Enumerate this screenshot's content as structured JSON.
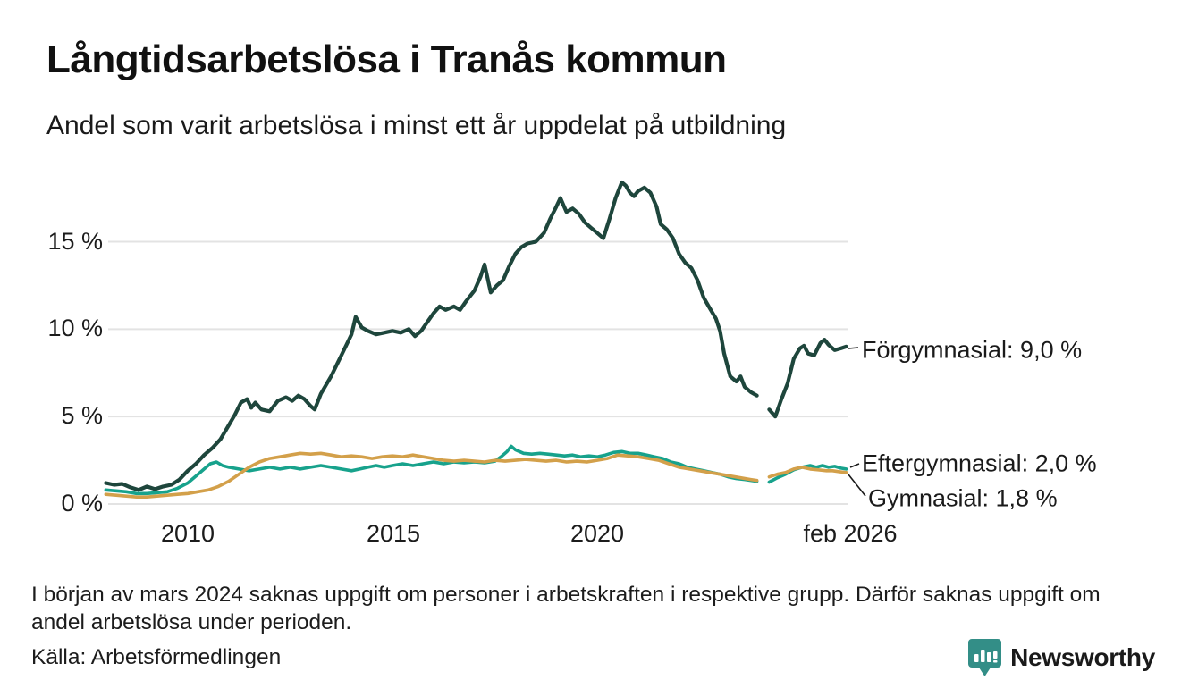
{
  "header": {
    "title": "Långtidsarbetslösa i Tranås kommun",
    "subtitle": "Andel som varit arbetslösa i minst ett år uppdelat på utbildning"
  },
  "chart_data": {
    "type": "line",
    "title": "Långtidsarbetslösa i Tranås kommun",
    "xlabel": "",
    "ylabel": "",
    "x_range": [
      2008.0,
      2026.08
    ],
    "ylim": [
      0,
      18.5
    ],
    "grid": "horizontal",
    "legend_position": "end-of-line-labels",
    "gridline_color": "#e3e3e3",
    "yticks": [
      {
        "label": "0 %",
        "value": 0
      },
      {
        "label": "5 %",
        "value": 5
      },
      {
        "label": "10 %",
        "value": 10
      },
      {
        "label": "15 %",
        "value": 15
      }
    ],
    "xticks": [
      {
        "label": "2010",
        "x": 2010
      },
      {
        "label": "2015",
        "x": 2015
      },
      {
        "label": "2020",
        "x": 2020
      },
      {
        "label": "feb 2026",
        "x": 2026.08
      }
    ],
    "data_gap": "mars 2024",
    "series": [
      {
        "name": "Förgymnasial",
        "color": "#1e463c",
        "line_width": 4.2,
        "end_label": "Förgymnasial: 9,0 %",
        "end_value_pct": 9.0,
        "points": [
          [
            2008.0,
            1.2
          ],
          [
            2008.2,
            1.1
          ],
          [
            2008.4,
            1.15
          ],
          [
            2008.6,
            0.95
          ],
          [
            2008.8,
            0.8
          ],
          [
            2009.0,
            1.0
          ],
          [
            2009.2,
            0.85
          ],
          [
            2009.4,
            1.0
          ],
          [
            2009.6,
            1.1
          ],
          [
            2009.8,
            1.4
          ],
          [
            2010.0,
            1.9
          ],
          [
            2010.2,
            2.3
          ],
          [
            2010.4,
            2.8
          ],
          [
            2010.6,
            3.2
          ],
          [
            2010.8,
            3.7
          ],
          [
            2011.0,
            4.5
          ],
          [
            2011.15,
            5.1
          ],
          [
            2011.3,
            5.8
          ],
          [
            2011.45,
            6.0
          ],
          [
            2011.55,
            5.5
          ],
          [
            2011.65,
            5.8
          ],
          [
            2011.8,
            5.4
          ],
          [
            2012.0,
            5.3
          ],
          [
            2012.2,
            5.9
          ],
          [
            2012.4,
            6.1
          ],
          [
            2012.55,
            5.9
          ],
          [
            2012.7,
            6.2
          ],
          [
            2012.85,
            6.0
          ],
          [
            2013.0,
            5.6
          ],
          [
            2013.1,
            5.4
          ],
          [
            2013.25,
            6.3
          ],
          [
            2013.5,
            7.3
          ],
          [
            2013.75,
            8.5
          ],
          [
            2014.0,
            9.7
          ],
          [
            2014.1,
            10.7
          ],
          [
            2014.25,
            10.1
          ],
          [
            2014.4,
            9.9
          ],
          [
            2014.6,
            9.7
          ],
          [
            2014.8,
            9.8
          ],
          [
            2015.0,
            9.9
          ],
          [
            2015.2,
            9.8
          ],
          [
            2015.4,
            10.0
          ],
          [
            2015.55,
            9.6
          ],
          [
            2015.7,
            9.9
          ],
          [
            2015.85,
            10.4
          ],
          [
            2016.0,
            10.9
          ],
          [
            2016.15,
            11.3
          ],
          [
            2016.3,
            11.1
          ],
          [
            2016.5,
            11.3
          ],
          [
            2016.65,
            11.1
          ],
          [
            2016.8,
            11.6
          ],
          [
            2017.0,
            12.2
          ],
          [
            2017.15,
            13.0
          ],
          [
            2017.25,
            13.7
          ],
          [
            2017.4,
            12.1
          ],
          [
            2017.55,
            12.5
          ],
          [
            2017.7,
            12.8
          ],
          [
            2017.85,
            13.6
          ],
          [
            2018.0,
            14.3
          ],
          [
            2018.15,
            14.7
          ],
          [
            2018.3,
            14.9
          ],
          [
            2018.5,
            15.0
          ],
          [
            2018.7,
            15.5
          ],
          [
            2018.85,
            16.3
          ],
          [
            2019.0,
            17.0
          ],
          [
            2019.1,
            17.5
          ],
          [
            2019.25,
            16.7
          ],
          [
            2019.4,
            16.9
          ],
          [
            2019.55,
            16.6
          ],
          [
            2019.7,
            16.1
          ],
          [
            2019.85,
            15.8
          ],
          [
            2020.0,
            15.5
          ],
          [
            2020.15,
            15.2
          ],
          [
            2020.3,
            16.3
          ],
          [
            2020.45,
            17.5
          ],
          [
            2020.6,
            18.4
          ],
          [
            2020.7,
            18.2
          ],
          [
            2020.8,
            17.8
          ],
          [
            2020.9,
            17.6
          ],
          [
            2021.0,
            17.9
          ],
          [
            2021.15,
            18.1
          ],
          [
            2021.3,
            17.8
          ],
          [
            2021.45,
            17.0
          ],
          [
            2021.55,
            16.0
          ],
          [
            2021.7,
            15.7
          ],
          [
            2021.85,
            15.2
          ],
          [
            2022.0,
            14.3
          ],
          [
            2022.15,
            13.8
          ],
          [
            2022.3,
            13.5
          ],
          [
            2022.45,
            12.8
          ],
          [
            2022.6,
            11.8
          ],
          [
            2022.75,
            11.2
          ],
          [
            2022.9,
            10.6
          ],
          [
            2023.0,
            9.9
          ],
          [
            2023.1,
            8.6
          ],
          [
            2023.25,
            7.3
          ],
          [
            2023.4,
            7.0
          ],
          [
            2023.5,
            7.3
          ],
          [
            2023.6,
            6.7
          ],
          [
            2023.75,
            6.4
          ],
          [
            2023.9,
            6.2
          ],
          [
            2024.05,
            null
          ],
          [
            2024.2,
            5.4
          ],
          [
            2024.35,
            5.0
          ],
          [
            2024.5,
            6.0
          ],
          [
            2024.65,
            6.9
          ],
          [
            2024.8,
            8.3
          ],
          [
            2024.95,
            8.9
          ],
          [
            2025.05,
            9.05
          ],
          [
            2025.15,
            8.6
          ],
          [
            2025.3,
            8.5
          ],
          [
            2025.45,
            9.2
          ],
          [
            2025.55,
            9.4
          ],
          [
            2025.65,
            9.1
          ],
          [
            2025.8,
            8.8
          ],
          [
            2025.95,
            8.9
          ],
          [
            2026.08,
            9.0
          ]
        ]
      },
      {
        "name": "Eftergymnasial",
        "color": "#17a28c",
        "line_width": 3.6,
        "end_label": "Eftergymnasial: 2,0 %",
        "end_value_pct": 2.0,
        "points": [
          [
            2008.0,
            0.8
          ],
          [
            2008.25,
            0.75
          ],
          [
            2008.5,
            0.7
          ],
          [
            2008.75,
            0.6
          ],
          [
            2009.0,
            0.6
          ],
          [
            2009.25,
            0.65
          ],
          [
            2009.5,
            0.7
          ],
          [
            2009.75,
            0.9
          ],
          [
            2010.0,
            1.2
          ],
          [
            2010.2,
            1.6
          ],
          [
            2010.4,
            2.0
          ],
          [
            2010.55,
            2.3
          ],
          [
            2010.7,
            2.4
          ],
          [
            2010.85,
            2.2
          ],
          [
            2011.0,
            2.1
          ],
          [
            2011.25,
            2.0
          ],
          [
            2011.5,
            1.9
          ],
          [
            2011.75,
            2.0
          ],
          [
            2012.0,
            2.1
          ],
          [
            2012.25,
            2.0
          ],
          [
            2012.5,
            2.1
          ],
          [
            2012.75,
            2.0
          ],
          [
            2013.0,
            2.1
          ],
          [
            2013.25,
            2.2
          ],
          [
            2013.5,
            2.1
          ],
          [
            2013.75,
            2.0
          ],
          [
            2014.0,
            1.9
          ],
          [
            2014.2,
            2.0
          ],
          [
            2014.4,
            2.1
          ],
          [
            2014.6,
            2.2
          ],
          [
            2014.8,
            2.1
          ],
          [
            2015.0,
            2.2
          ],
          [
            2015.25,
            2.3
          ],
          [
            2015.5,
            2.2
          ],
          [
            2015.75,
            2.3
          ],
          [
            2016.0,
            2.4
          ],
          [
            2016.25,
            2.3
          ],
          [
            2016.5,
            2.4
          ],
          [
            2016.75,
            2.35
          ],
          [
            2017.0,
            2.4
          ],
          [
            2017.25,
            2.35
          ],
          [
            2017.5,
            2.45
          ],
          [
            2017.65,
            2.7
          ],
          [
            2017.8,
            3.0
          ],
          [
            2017.9,
            3.3
          ],
          [
            2018.0,
            3.1
          ],
          [
            2018.2,
            2.9
          ],
          [
            2018.4,
            2.85
          ],
          [
            2018.6,
            2.9
          ],
          [
            2018.8,
            2.85
          ],
          [
            2019.0,
            2.8
          ],
          [
            2019.2,
            2.75
          ],
          [
            2019.4,
            2.8
          ],
          [
            2019.6,
            2.7
          ],
          [
            2019.8,
            2.75
          ],
          [
            2020.0,
            2.7
          ],
          [
            2020.2,
            2.8
          ],
          [
            2020.4,
            2.95
          ],
          [
            2020.6,
            3.0
          ],
          [
            2020.8,
            2.9
          ],
          [
            2021.0,
            2.9
          ],
          [
            2021.2,
            2.8
          ],
          [
            2021.4,
            2.7
          ],
          [
            2021.6,
            2.6
          ],
          [
            2021.8,
            2.4
          ],
          [
            2022.0,
            2.3
          ],
          [
            2022.2,
            2.1
          ],
          [
            2022.4,
            2.0
          ],
          [
            2022.6,
            1.9
          ],
          [
            2022.8,
            1.8
          ],
          [
            2023.0,
            1.7
          ],
          [
            2023.2,
            1.55
          ],
          [
            2023.4,
            1.45
          ],
          [
            2023.6,
            1.4
          ],
          [
            2023.75,
            1.35
          ],
          [
            2023.9,
            1.3
          ],
          [
            2024.05,
            null
          ],
          [
            2024.2,
            1.25
          ],
          [
            2024.4,
            1.5
          ],
          [
            2024.6,
            1.7
          ],
          [
            2024.8,
            1.95
          ],
          [
            2025.0,
            2.1
          ],
          [
            2025.2,
            2.2
          ],
          [
            2025.35,
            2.1
          ],
          [
            2025.5,
            2.2
          ],
          [
            2025.65,
            2.1
          ],
          [
            2025.8,
            2.15
          ],
          [
            2025.95,
            2.05
          ],
          [
            2026.08,
            2.0
          ]
        ]
      },
      {
        "name": "Gymnasial",
        "color": "#d3a04a",
        "line_width": 3.6,
        "end_label": "Gymnasial: 1,8 %",
        "end_value_pct": 1.8,
        "points": [
          [
            2008.0,
            0.55
          ],
          [
            2008.25,
            0.5
          ],
          [
            2008.5,
            0.45
          ],
          [
            2008.75,
            0.4
          ],
          [
            2009.0,
            0.4
          ],
          [
            2009.25,
            0.45
          ],
          [
            2009.5,
            0.5
          ],
          [
            2009.75,
            0.55
          ],
          [
            2010.0,
            0.6
          ],
          [
            2010.25,
            0.7
          ],
          [
            2010.5,
            0.8
          ],
          [
            2010.75,
            1.0
          ],
          [
            2011.0,
            1.3
          ],
          [
            2011.25,
            1.7
          ],
          [
            2011.5,
            2.1
          ],
          [
            2011.75,
            2.4
          ],
          [
            2012.0,
            2.6
          ],
          [
            2012.25,
            2.7
          ],
          [
            2012.5,
            2.8
          ],
          [
            2012.75,
            2.9
          ],
          [
            2013.0,
            2.85
          ],
          [
            2013.25,
            2.9
          ],
          [
            2013.5,
            2.8
          ],
          [
            2013.75,
            2.7
          ],
          [
            2014.0,
            2.75
          ],
          [
            2014.25,
            2.7
          ],
          [
            2014.5,
            2.6
          ],
          [
            2014.75,
            2.7
          ],
          [
            2015.0,
            2.75
          ],
          [
            2015.25,
            2.7
          ],
          [
            2015.5,
            2.8
          ],
          [
            2015.75,
            2.7
          ],
          [
            2016.0,
            2.6
          ],
          [
            2016.25,
            2.5
          ],
          [
            2016.5,
            2.45
          ],
          [
            2016.75,
            2.5
          ],
          [
            2017.0,
            2.45
          ],
          [
            2017.25,
            2.4
          ],
          [
            2017.5,
            2.5
          ],
          [
            2017.75,
            2.45
          ],
          [
            2018.0,
            2.5
          ],
          [
            2018.25,
            2.55
          ],
          [
            2018.5,
            2.5
          ],
          [
            2018.75,
            2.45
          ],
          [
            2019.0,
            2.5
          ],
          [
            2019.25,
            2.4
          ],
          [
            2019.5,
            2.45
          ],
          [
            2019.75,
            2.4
          ],
          [
            2020.0,
            2.5
          ],
          [
            2020.25,
            2.6
          ],
          [
            2020.5,
            2.8
          ],
          [
            2020.75,
            2.75
          ],
          [
            2021.0,
            2.7
          ],
          [
            2021.25,
            2.6
          ],
          [
            2021.5,
            2.5
          ],
          [
            2021.75,
            2.3
          ],
          [
            2022.0,
            2.1
          ],
          [
            2022.25,
            2.0
          ],
          [
            2022.5,
            1.9
          ],
          [
            2022.75,
            1.8
          ],
          [
            2023.0,
            1.7
          ],
          [
            2023.25,
            1.6
          ],
          [
            2023.5,
            1.5
          ],
          [
            2023.75,
            1.4
          ],
          [
            2023.9,
            1.35
          ],
          [
            2024.05,
            null
          ],
          [
            2024.2,
            1.55
          ],
          [
            2024.4,
            1.7
          ],
          [
            2024.6,
            1.8
          ],
          [
            2024.8,
            2.0
          ],
          [
            2025.0,
            2.1
          ],
          [
            2025.2,
            2.0
          ],
          [
            2025.4,
            1.95
          ],
          [
            2025.6,
            1.9
          ],
          [
            2025.75,
            1.9
          ],
          [
            2025.9,
            1.85
          ],
          [
            2026.08,
            1.8
          ]
        ]
      }
    ]
  },
  "footnote": {
    "text": "I början av mars 2024 saknas uppgift om personer i arbetskraften i respektive grupp. Därför saknas uppgift om andel arbetslösa under perioden."
  },
  "source": {
    "text": "Källa: Arbetsförmedlingen"
  },
  "branding": {
    "name": "Newsworthy",
    "color": "#338e87"
  }
}
